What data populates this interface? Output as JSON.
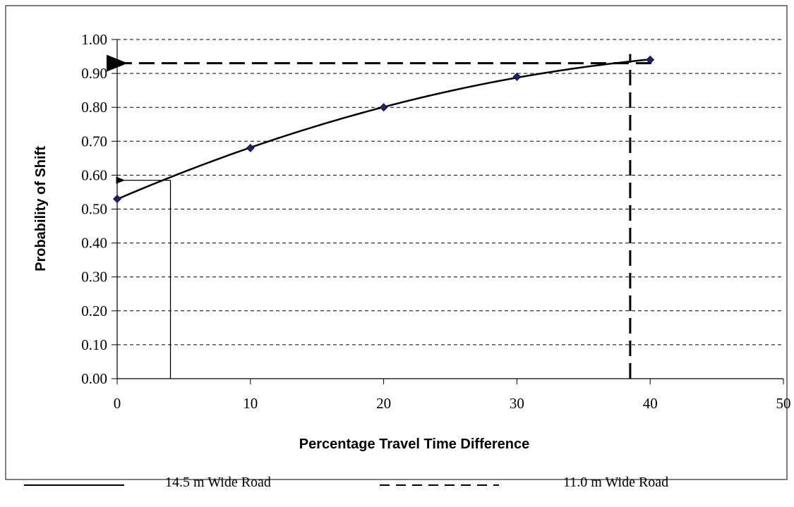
{
  "chart_data": {
    "type": "line",
    "title": "",
    "xlabel": "Percentage Travel Time Difference",
    "ylabel": "Probability of Shift",
    "xlim": [
      0,
      50
    ],
    "ylim": [
      0,
      1.0
    ],
    "x_ticks": [
      "0",
      "10",
      "20",
      "30",
      "40",
      "50"
    ],
    "y_ticks": [
      "0.00",
      "0.10",
      "0.20",
      "0.30",
      "0.40",
      "0.50",
      "0.60",
      "0.70",
      "0.80",
      "0.90",
      "1.00"
    ],
    "grid": "horizontal dashed",
    "series": [
      {
        "type": "scatter-with-fitted-curve",
        "x": [
          0,
          10,
          20,
          30,
          40
        ],
        "y": [
          0.53,
          0.68,
          0.8,
          0.89,
          0.94
        ],
        "marker_color": "#1F1F7A"
      }
    ],
    "annotations": [
      {
        "name": "14.5 m Wide Road",
        "style": "solid",
        "x": 4,
        "y": 0.585
      },
      {
        "name": "11.0 m Wide Road",
        "style": "dashed",
        "x": 38.5,
        "y": 0.93
      }
    ],
    "legend": {
      "placement": "bottom",
      "entries": [
        "14.5 m Wide Road",
        "11.0 m Wide Road"
      ]
    }
  }
}
